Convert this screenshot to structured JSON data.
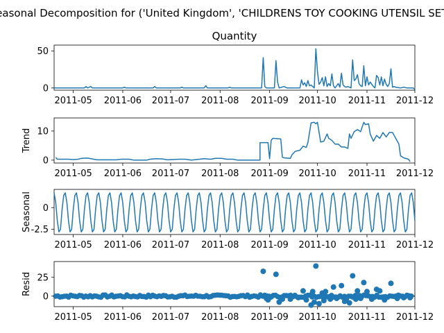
{
  "figure": {
    "suptitle": "Seasonal Decomposition for ('United Kingdom', 'CHILDRENS TOY COOKING UTENSIL SET')"
  },
  "chart_data": [
    {
      "type": "line",
      "title": "Quantity",
      "ylabel": "",
      "ylim": [
        -3,
        58
      ],
      "yticks": [
        0,
        50
      ],
      "x_range": [
        "2011-04-19",
        "2011-12-01"
      ],
      "x_ticks": [
        "2011-05",
        "2011-06",
        "2011-07",
        "2011-08",
        "2011-09",
        "2011-10",
        "2011-11",
        "2011-12"
      ],
      "color": "#1f77b4",
      "series": [
        {
          "values": [
            [
              "2011-04-19",
              0
            ],
            [
              "2011-05-08",
              0
            ],
            [
              "2011-05-09",
              2
            ],
            [
              "2011-05-10",
              0
            ],
            [
              "2011-05-12",
              2
            ],
            [
              "2011-05-13",
              0
            ],
            [
              "2011-06-01",
              0
            ],
            [
              "2011-06-02",
              1
            ],
            [
              "2011-06-03",
              0
            ],
            [
              "2011-06-20",
              0
            ],
            [
              "2011-06-21",
              2
            ],
            [
              "2011-06-22",
              0
            ],
            [
              "2011-07-07",
              0
            ],
            [
              "2011-07-08",
              1
            ],
            [
              "2011-07-09",
              0
            ],
            [
              "2011-07-22",
              0
            ],
            [
              "2011-07-23",
              3
            ],
            [
              "2011-07-24",
              0
            ],
            [
              "2011-08-06",
              0
            ],
            [
              "2011-08-07",
              1
            ],
            [
              "2011-08-08",
              0
            ],
            [
              "2011-08-27",
              0
            ],
            [
              "2011-08-28",
              41
            ],
            [
              "2011-08-29",
              2
            ],
            [
              "2011-08-30",
              0
            ],
            [
              "2011-09-04",
              0
            ],
            [
              "2011-09-05",
              37
            ],
            [
              "2011-09-06",
              8
            ],
            [
              "2011-09-07",
              0
            ],
            [
              "2011-09-10",
              2
            ],
            [
              "2011-09-12",
              0
            ],
            [
              "2011-09-20",
              0
            ],
            [
              "2011-09-21",
              11
            ],
            [
              "2011-09-22",
              4
            ],
            [
              "2011-09-23",
              7
            ],
            [
              "2011-09-24",
              2
            ],
            [
              "2011-09-25",
              10
            ],
            [
              "2011-09-26",
              3
            ],
            [
              "2011-09-27",
              4
            ],
            [
              "2011-09-28",
              2
            ],
            [
              "2011-09-29",
              0
            ],
            [
              "2011-09-30",
              53
            ],
            [
              "2011-10-01",
              22
            ],
            [
              "2011-10-02",
              5
            ],
            [
              "2011-10-03",
              8
            ],
            [
              "2011-10-04",
              14
            ],
            [
              "2011-10-05",
              3
            ],
            [
              "2011-10-06",
              15
            ],
            [
              "2011-10-07",
              2
            ],
            [
              "2011-10-08",
              6
            ],
            [
              "2011-10-09",
              3
            ],
            [
              "2011-10-10",
              19
            ],
            [
              "2011-10-11",
              3
            ],
            [
              "2011-10-12",
              0
            ],
            [
              "2011-10-13",
              3
            ],
            [
              "2011-10-14",
              6
            ],
            [
              "2011-10-15",
              1
            ],
            [
              "2011-10-16",
              20
            ],
            [
              "2011-10-17",
              4
            ],
            [
              "2011-10-18",
              2
            ],
            [
              "2011-10-19",
              1
            ],
            [
              "2011-10-20",
              2
            ],
            [
              "2011-10-21",
              1
            ],
            [
              "2011-10-22",
              0
            ],
            [
              "2011-10-23",
              38
            ],
            [
              "2011-10-24",
              10
            ],
            [
              "2011-10-25",
              12
            ],
            [
              "2011-10-26",
              18
            ],
            [
              "2011-10-27",
              6
            ],
            [
              "2011-10-28",
              3
            ],
            [
              "2011-10-29",
              2
            ],
            [
              "2011-10-30",
              30
            ],
            [
              "2011-10-31",
              3
            ],
            [
              "2011-11-01",
              15
            ],
            [
              "2011-11-02",
              4
            ],
            [
              "2011-11-03",
              8
            ],
            [
              "2011-11-04",
              5
            ],
            [
              "2011-11-05",
              2
            ],
            [
              "2011-11-06",
              0
            ],
            [
              "2011-11-07",
              17
            ],
            [
              "2011-11-08",
              14
            ],
            [
              "2011-11-09",
              4
            ],
            [
              "2011-11-10",
              15
            ],
            [
              "2011-11-11",
              3
            ],
            [
              "2011-11-12",
              12
            ],
            [
              "2011-11-13",
              5
            ],
            [
              "2011-11-14",
              2
            ],
            [
              "2011-11-15",
              6
            ],
            [
              "2011-11-16",
              26
            ],
            [
              "2011-11-17",
              1
            ],
            [
              "2011-11-18",
              2
            ],
            [
              "2011-11-19",
              1
            ],
            [
              "2011-11-22",
              0
            ],
            [
              "2011-11-24",
              1
            ],
            [
              "2011-11-26",
              0
            ],
            [
              "2011-11-30",
              0
            ],
            [
              "2011-12-01",
              -2
            ]
          ]
        }
      ]
    },
    {
      "type": "line",
      "title": "",
      "ylabel": "Trend",
      "ylim": [
        -1,
        14.5
      ],
      "yticks": [
        0,
        10
      ],
      "x_range": [
        "2011-04-19",
        "2011-12-01"
      ],
      "x_ticks": [
        "2011-05",
        "2011-06",
        "2011-07",
        "2011-08",
        "2011-09",
        "2011-10",
        "2011-11",
        "2011-12"
      ],
      "color": "#1f77b4",
      "series": [
        {
          "values": [
            [
              "2011-04-20",
              0.9
            ],
            [
              "2011-04-21",
              0.3
            ],
            [
              "2011-04-28",
              0.3
            ],
            [
              "2011-05-01",
              0.2
            ],
            [
              "2011-05-04",
              0.3
            ],
            [
              "2011-05-06",
              0.6
            ],
            [
              "2011-05-10",
              0.7
            ],
            [
              "2011-05-13",
              0.4
            ],
            [
              "2011-05-16",
              0.1
            ],
            [
              "2011-05-28",
              0.1
            ],
            [
              "2011-05-31",
              0.3
            ],
            [
              "2011-06-05",
              0.3
            ],
            [
              "2011-06-08",
              0.0
            ],
            [
              "2011-06-16",
              0.0
            ],
            [
              "2011-06-18",
              0.3
            ],
            [
              "2011-06-22",
              0.5
            ],
            [
              "2011-06-26",
              0.4
            ],
            [
              "2011-06-29",
              0.1
            ],
            [
              "2011-07-06",
              0.3
            ],
            [
              "2011-07-10",
              0.3
            ],
            [
              "2011-07-14",
              0.0
            ],
            [
              "2011-07-19",
              0.3
            ],
            [
              "2011-07-22",
              0.5
            ],
            [
              "2011-07-26",
              0.3
            ],
            [
              "2011-07-29",
              0.6
            ],
            [
              "2011-08-02",
              0.6
            ],
            [
              "2011-08-05",
              0.3
            ],
            [
              "2011-08-09",
              0.3
            ],
            [
              "2011-08-12",
              0.0
            ],
            [
              "2011-08-26",
              0.0
            ],
            [
              "2011-08-26",
              6.0
            ],
            [
              "2011-08-31",
              6.0
            ],
            [
              "2011-09-01",
              0.5
            ],
            [
              "2011-09-02",
              6.8
            ],
            [
              "2011-09-03",
              7.5
            ],
            [
              "2011-09-08",
              7.3
            ],
            [
              "2011-09-09",
              1.0
            ],
            [
              "2011-09-10",
              0.8
            ],
            [
              "2011-09-14",
              0.6
            ],
            [
              "2011-09-15",
              1.8
            ],
            [
              "2011-09-17",
              3.0
            ],
            [
              "2011-09-20",
              3.4
            ],
            [
              "2011-09-22",
              4.8
            ],
            [
              "2011-09-24",
              4.4
            ],
            [
              "2011-09-25",
              6.0
            ],
            [
              "2011-09-27",
              12.8
            ],
            [
              "2011-09-29",
              13.0
            ],
            [
              "2011-09-30",
              12.5
            ],
            [
              "2011-10-01",
              13.0
            ],
            [
              "2011-10-03",
              6.2
            ],
            [
              "2011-10-05",
              6.5
            ],
            [
              "2011-10-07",
              9.0
            ],
            [
              "2011-10-08",
              7.5
            ],
            [
              "2011-10-10",
              6.8
            ],
            [
              "2011-10-12",
              5.5
            ],
            [
              "2011-10-14",
              5.5
            ],
            [
              "2011-10-16",
              4.5
            ],
            [
              "2011-10-18",
              4.5
            ],
            [
              "2011-10-20",
              4.0
            ],
            [
              "2011-10-21",
              9.0
            ],
            [
              "2011-10-22",
              7.5
            ],
            [
              "2011-10-24",
              9.8
            ],
            [
              "2011-10-26",
              10.5
            ],
            [
              "2011-10-28",
              9.8
            ],
            [
              "2011-10-30",
              13.0
            ],
            [
              "2011-10-31",
              12.2
            ],
            [
              "2011-11-02",
              12.5
            ],
            [
              "2011-11-03",
              9.0
            ],
            [
              "2011-11-05",
              6.5
            ],
            [
              "2011-11-07",
              8.5
            ],
            [
              "2011-11-09",
              7.5
            ],
            [
              "2011-11-11",
              9.5
            ],
            [
              "2011-11-13",
              8.0
            ],
            [
              "2011-11-15",
              9.5
            ],
            [
              "2011-11-17",
              9.5
            ],
            [
              "2011-11-19",
              7.5
            ],
            [
              "2011-11-21",
              5.5
            ],
            [
              "2011-11-22",
              1.5
            ],
            [
              "2011-11-24",
              0.8
            ],
            [
              "2011-11-27",
              0.3
            ],
            [
              "2011-11-28",
              -0.5
            ]
          ]
        }
      ]
    },
    {
      "type": "line",
      "title": "",
      "ylabel": "Seasonal",
      "ylim": [
        -3.1,
        2.1
      ],
      "yticks": [
        -2.5,
        0.0
      ],
      "x_range": [
        "2011-04-19",
        "2011-12-01"
      ],
      "x_ticks": [
        "2011-05",
        "2011-06",
        "2011-07",
        "2011-08",
        "2011-09",
        "2011-10",
        "2011-11",
        "2011-12"
      ],
      "color": "#1f77b4",
      "period_days": 7,
      "series": [
        {
          "weekly_pattern": [
            1.7,
            0.6,
            -1.5,
            -2.8,
            -2.5,
            -0.2,
            1.4
          ]
        }
      ]
    },
    {
      "type": "scatter",
      "title": "",
      "ylabel": "Resid",
      "ylim": [
        -14,
        46
      ],
      "yticks": [
        0,
        25
      ],
      "x_range": [
        "2011-04-19",
        "2011-12-01"
      ],
      "x_ticks": [
        "2011-05",
        "2011-06",
        "2011-07",
        "2011-08",
        "2011-09",
        "2011-10",
        "2011-11",
        "2011-12"
      ],
      "color": "#1f77b4",
      "zero_line": true,
      "series": [
        {
          "outliers": [
            [
              "2011-08-28",
              33
            ],
            [
              "2011-08-30",
              -3
            ],
            [
              "2011-08-31",
              -5
            ],
            [
              "2011-09-01",
              -2
            ],
            [
              "2011-09-05",
              29
            ],
            [
              "2011-09-07",
              -8
            ],
            [
              "2011-09-09",
              -4
            ],
            [
              "2011-09-14",
              -4
            ],
            [
              "2011-09-19",
              -2
            ],
            [
              "2011-09-22",
              7
            ],
            [
              "2011-09-24",
              -5
            ],
            [
              "2011-09-27",
              -12
            ],
            [
              "2011-09-28",
              6
            ],
            [
              "2011-09-29",
              -8
            ],
            [
              "2011-09-30",
              40
            ],
            [
              "2011-10-02",
              -10
            ],
            [
              "2011-10-04",
              4
            ],
            [
              "2011-10-05",
              -6
            ],
            [
              "2011-10-06",
              6
            ],
            [
              "2011-10-09",
              -4
            ],
            [
              "2011-10-11",
              12
            ],
            [
              "2011-10-13",
              -3
            ],
            [
              "2011-10-16",
              14
            ],
            [
              "2011-10-18",
              -7
            ],
            [
              "2011-10-19",
              -4
            ],
            [
              "2011-10-21",
              -9
            ],
            [
              "2011-10-23",
              27
            ],
            [
              "2011-10-25",
              -4
            ],
            [
              "2011-10-26",
              7
            ],
            [
              "2011-10-28",
              -3
            ],
            [
              "2011-10-30",
              18
            ],
            [
              "2011-11-01",
              6
            ],
            [
              "2011-11-04",
              -4
            ],
            [
              "2011-11-07",
              9
            ],
            [
              "2011-11-09",
              7
            ],
            [
              "2011-11-12",
              -5
            ],
            [
              "2011-11-16",
              17
            ],
            [
              "2011-11-20",
              -3
            ],
            [
              "2011-11-24",
              -2
            ],
            [
              "2011-11-28",
              -2
            ]
          ],
          "baseline_range": [
            "2011-04-20",
            "2011-11-30"
          ]
        }
      ]
    }
  ]
}
